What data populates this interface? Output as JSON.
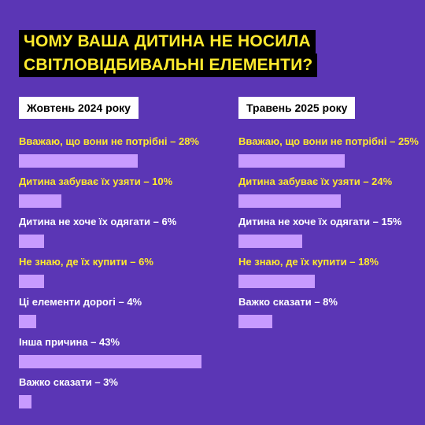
{
  "title": {
    "line1": "ЧОМУ ВАША ДИТИНА НЕ НОСИЛА",
    "line2": "СВІТЛОВІДБИВАЛЬНІ ЕЛЕМЕНТИ?"
  },
  "colors": {
    "background": "#5b36b5",
    "bar": "#c89bff",
    "highlight_text": "#ffea2e",
    "normal_text": "#ffffff"
  },
  "chart_data": [
    {
      "type": "bar",
      "title": "Жовтень 2024 року",
      "series": [
        {
          "label": "Вважаю, що вони не потрібні – 28%",
          "value": 28,
          "highlight": true
        },
        {
          "label": "Дитина забуває їх узяти – 10%",
          "value": 10,
          "highlight": true
        },
        {
          "label": "Дитина не хоче їх одягати – 6%",
          "value": 6,
          "highlight": false
        },
        {
          "label": "Не знаю, де їх купити – 6%",
          "value": 6,
          "highlight": true
        },
        {
          "label": "Ці елементи дорогі – 4%",
          "value": 4,
          "highlight": false
        },
        {
          "label": "Інша причина – 43%",
          "value": 43,
          "highlight": false
        },
        {
          "label": "Важко сказати – 3%",
          "value": 3,
          "highlight": false
        }
      ]
    },
    {
      "type": "bar",
      "title": "Травень 2025 року",
      "series": [
        {
          "label": "Вважаю, що вони не потрібні – 25%",
          "value": 25,
          "highlight": true
        },
        {
          "label": "Дитина забуває їх узяти – 24%",
          "value": 24,
          "highlight": true
        },
        {
          "label": "Дитина не хоче їх одягати – 15%",
          "value": 15,
          "highlight": false
        },
        {
          "label": "Не знаю, де їх купити – 18%",
          "value": 18,
          "highlight": true
        },
        {
          "label": "Важко сказати – 8%",
          "value": 8,
          "highlight": false
        }
      ]
    }
  ]
}
